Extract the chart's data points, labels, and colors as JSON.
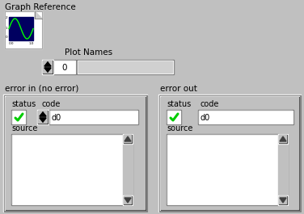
{
  "bg_color": "#c0c0c0",
  "title_text": "Graph Reference",
  "plot_names_label": "Plot Names",
  "error_in_label": "error in (no error)",
  "error_out_label": "error out",
  "status_label": "status",
  "code_label": "code",
  "source_label": "source",
  "green_check": "#00cc00",
  "wave_color": "#00ff00",
  "icon_dark_bg": "#000050",
  "white": "#ffffff",
  "light_gray": "#d0d0d0",
  "scrollbar_bg": "#c8c8c8"
}
